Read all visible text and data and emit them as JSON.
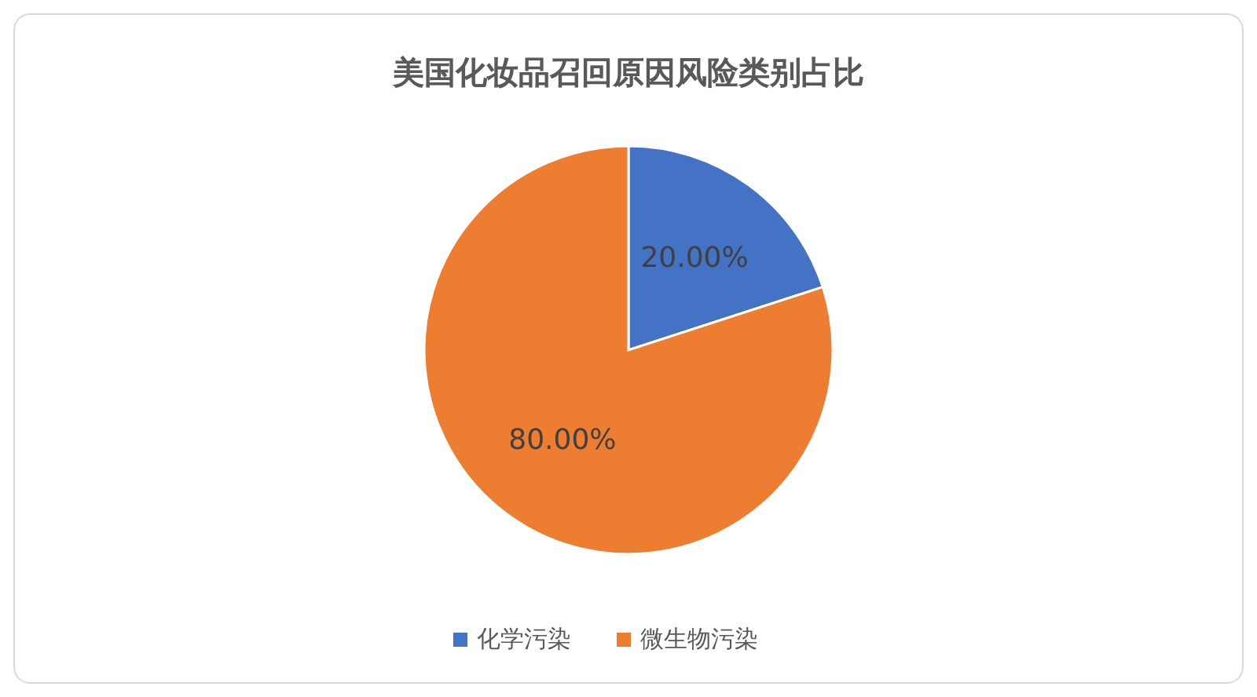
{
  "chart_data": {
    "type": "pie",
    "title": "美国化妆品召回原因风险类别占比",
    "categories": [
      "化学污染",
      "微生物污染"
    ],
    "values": [
      20,
      80
    ],
    "colors": [
      "#4472c4",
      "#ed7d31"
    ],
    "value_labels": [
      "20.00%",
      "80.00%"
    ],
    "legend": "bottom"
  }
}
